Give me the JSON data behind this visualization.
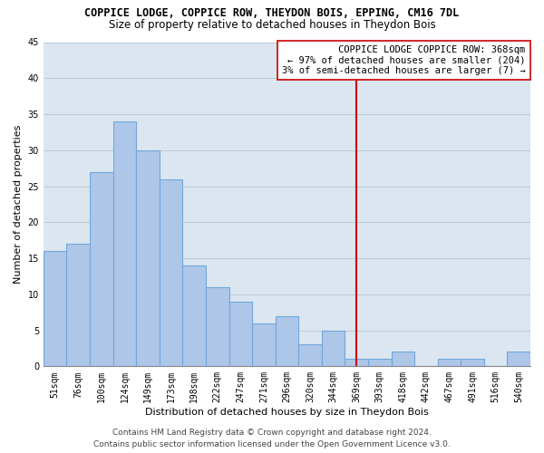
{
  "title": "COPPICE LODGE, COPPICE ROW, THEYDON BOIS, EPPING, CM16 7DL",
  "subtitle": "Size of property relative to detached houses in Theydon Bois",
  "xlabel": "Distribution of detached houses by size in Theydon Bois",
  "ylabel": "Number of detached properties",
  "categories": [
    "51sqm",
    "76sqm",
    "100sqm",
    "124sqm",
    "149sqm",
    "173sqm",
    "198sqm",
    "222sqm",
    "247sqm",
    "271sqm",
    "296sqm",
    "320sqm",
    "344sqm",
    "369sqm",
    "393sqm",
    "418sqm",
    "442sqm",
    "467sqm",
    "491sqm",
    "516sqm",
    "540sqm"
  ],
  "values": [
    16,
    17,
    27,
    34,
    30,
    26,
    14,
    11,
    9,
    6,
    7,
    3,
    5,
    1,
    1,
    2,
    0,
    1,
    1,
    0,
    2
  ],
  "bar_color": "#aec6e8",
  "bar_edge_color": "#6fa8dc",
  "bar_edge_width": 0.8,
  "highlight_line_color": "#cc0000",
  "highlight_index": 13,
  "ylim": [
    0,
    45
  ],
  "yticks": [
    0,
    5,
    10,
    15,
    20,
    25,
    30,
    35,
    40,
    45
  ],
  "annotation_text_line1": "COPPICE LODGE COPPICE ROW: 368sqm",
  "annotation_text_line2": "← 97% of detached houses are smaller (204)",
  "annotation_text_line3": "3% of semi-detached houses are larger (7) →",
  "bg_color": "#dce6f1",
  "grid_color": "#b0bec5",
  "title_fontsize": 8.5,
  "subtitle_fontsize": 8.5,
  "axis_label_fontsize": 8,
  "tick_fontsize": 7,
  "annotation_fontsize": 7.5,
  "footer_fontsize": 6.5,
  "footer_text": "Contains HM Land Registry data © Crown copyright and database right 2024.\nContains public sector information licensed under the Open Government Licence v3.0."
}
